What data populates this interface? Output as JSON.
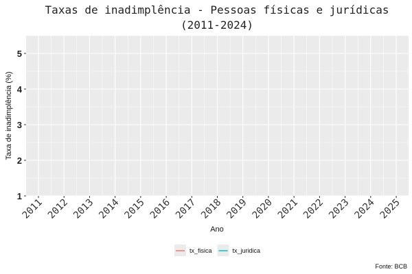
{
  "chart_data": {
    "type": "line",
    "title": "Taxas de inadimplência - Pessoas físicas e jurídicas",
    "subtitle": "(2011-2024)",
    "xlabel": "Ano",
    "ylabel": "Taxa de inadimplência (%)",
    "x_ticks": [
      "2011",
      "2012",
      "2013",
      "2014",
      "2015",
      "2016",
      "2017",
      "2018",
      "2019",
      "2020",
      "2021",
      "2022",
      "2023",
      "2024",
      "2025"
    ],
    "y_ticks": [
      1,
      2,
      3,
      4,
      5
    ],
    "xlim": [
      2011,
      2025
    ],
    "ylim": [
      1,
      5.5
    ],
    "grid": true,
    "legend_position": "bottom",
    "series": [
      {
        "name": "tx_fisica",
        "color": "#F8766D",
        "values": []
      },
      {
        "name": "tx_juridica",
        "color": "#00BFC4",
        "values": []
      }
    ],
    "caption": "Fonte: BCB",
    "panel_background": "#EBEBEB",
    "grid_color": "#FFFFFF"
  }
}
